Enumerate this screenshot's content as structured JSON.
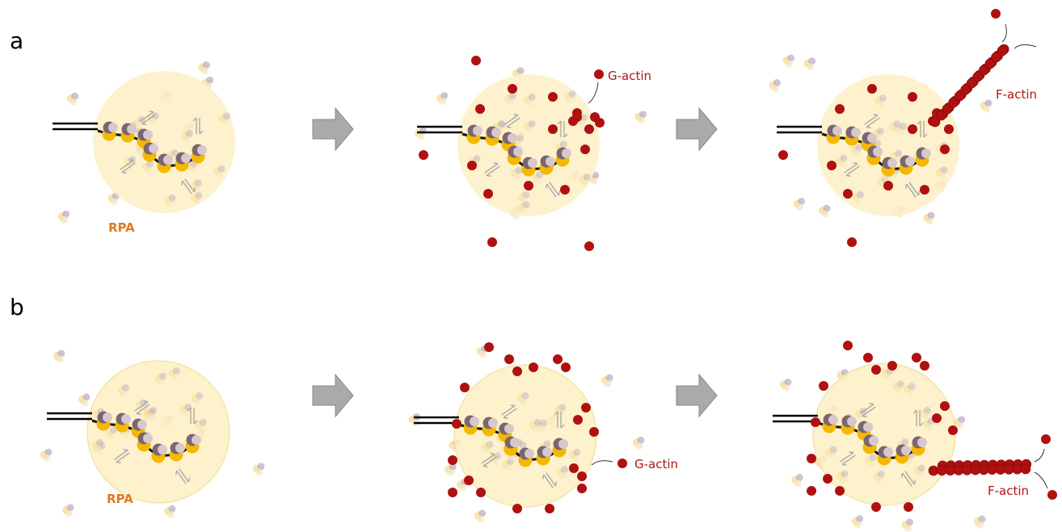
{
  "panels": [
    {
      "label": "a",
      "rpa_label": "RPA",
      "g_actin_label": "G-actin",
      "f_actin_label": "F-actin"
    },
    {
      "label": "b",
      "rpa_label": "RPA",
      "g_actin_label": "G-actin",
      "f_actin_label": "F-actin"
    }
  ]
}
